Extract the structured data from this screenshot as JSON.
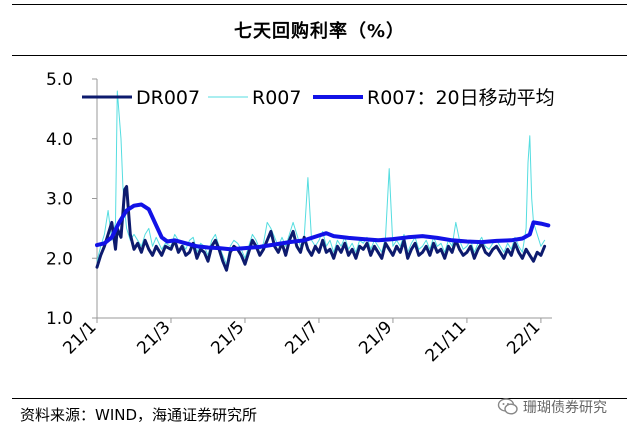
{
  "title": "七天回购利率（%）",
  "chart_data": {
    "type": "line",
    "title": "七天回购利率（%）",
    "xlabel": "",
    "ylabel": "",
    "ylim": [
      1.0,
      5.0
    ],
    "yticks": [
      "1.0",
      "2.0",
      "3.0",
      "4.0",
      "5.0"
    ],
    "ytick_values": [
      1.0,
      2.0,
      3.0,
      4.0,
      5.0
    ],
    "xlim": [
      0,
      12.3
    ],
    "xticks": [
      "21/1",
      "21/3",
      "21/5",
      "21/7",
      "21/9",
      "21/11",
      "22/1"
    ],
    "xtick_values": [
      0,
      2,
      4,
      6,
      8,
      10,
      12
    ],
    "legend": [
      "DR007",
      "R007",
      "R007：20日移动平均"
    ],
    "series": [
      {
        "name": "DR007",
        "color": "#0d1b6e",
        "x": [
          0.0,
          0.1,
          0.2,
          0.3,
          0.4,
          0.5,
          0.55,
          0.65,
          0.75,
          0.8,
          0.9,
          1.0,
          1.1,
          1.2,
          1.3,
          1.4,
          1.5,
          1.6,
          1.75,
          1.85,
          2.0,
          2.1,
          2.2,
          2.3,
          2.4,
          2.5,
          2.6,
          2.7,
          2.8,
          2.9,
          3.0,
          3.1,
          3.2,
          3.3,
          3.4,
          3.5,
          3.6,
          3.7,
          3.8,
          3.9,
          4.0,
          4.1,
          4.2,
          4.3,
          4.4,
          4.5,
          4.6,
          4.7,
          4.8,
          4.9,
          5.0,
          5.1,
          5.2,
          5.3,
          5.4,
          5.5,
          5.6,
          5.7,
          5.8,
          5.9,
          6.0,
          6.1,
          6.2,
          6.3,
          6.4,
          6.5,
          6.6,
          6.7,
          6.8,
          6.9,
          7.0,
          7.1,
          7.2,
          7.3,
          7.4,
          7.5,
          7.6,
          7.7,
          7.8,
          7.9,
          8.0,
          8.1,
          8.2,
          8.3,
          8.4,
          8.5,
          8.6,
          8.7,
          8.8,
          8.9,
          9.0,
          9.1,
          9.2,
          9.3,
          9.4,
          9.5,
          9.6,
          9.7,
          9.8,
          9.9,
          10.0,
          10.1,
          10.2,
          10.3,
          10.4,
          10.5,
          10.6,
          10.7,
          10.8,
          10.9,
          11.0,
          11.1,
          11.2,
          11.3,
          11.4,
          11.5,
          11.6,
          11.7,
          11.8,
          11.9,
          12.0,
          12.1
        ],
        "values": [
          1.85,
          2.05,
          2.2,
          2.4,
          2.6,
          2.15,
          2.5,
          2.35,
          3.15,
          3.2,
          2.4,
          2.15,
          2.25,
          2.1,
          2.3,
          2.15,
          2.05,
          2.2,
          2.05,
          2.2,
          2.15,
          2.3,
          2.1,
          2.2,
          2.05,
          2.1,
          2.25,
          2.0,
          2.15,
          2.1,
          1.95,
          2.2,
          2.3,
          2.15,
          1.95,
          1.8,
          2.1,
          2.2,
          2.15,
          2.05,
          1.9,
          2.1,
          2.3,
          2.2,
          2.05,
          2.15,
          2.3,
          2.45,
          2.2,
          2.1,
          2.25,
          2.05,
          2.3,
          2.45,
          2.2,
          2.1,
          2.35,
          2.15,
          2.05,
          2.2,
          2.1,
          2.3,
          2.1,
          2.15,
          2.0,
          2.2,
          2.1,
          2.25,
          2.05,
          2.15,
          2.0,
          2.2,
          2.15,
          2.25,
          2.05,
          2.2,
          2.1,
          2.0,
          2.25,
          2.15,
          2.05,
          2.2,
          2.1,
          2.3,
          2.0,
          2.15,
          2.25,
          2.05,
          2.1,
          2.2,
          2.05,
          2.25,
          2.1,
          2.15,
          2.0,
          2.2,
          2.1,
          2.3,
          2.15,
          2.05,
          2.1,
          2.2,
          2.0,
          2.15,
          2.25,
          2.1,
          2.05,
          2.15,
          2.2,
          2.1,
          2.0,
          2.15,
          2.05,
          2.25,
          2.1,
          2.0,
          2.15,
          2.05,
          1.95,
          2.1,
          2.05,
          2.2
        ]
      },
      {
        "name": "R007",
        "color": "#55dde0",
        "x": [
          0.0,
          0.1,
          0.2,
          0.3,
          0.4,
          0.5,
          0.55,
          0.65,
          0.7,
          0.75,
          0.8,
          0.9,
          1.0,
          1.1,
          1.2,
          1.3,
          1.4,
          1.5,
          1.6,
          1.75,
          1.85,
          2.0,
          2.1,
          2.2,
          2.3,
          2.4,
          2.5,
          2.6,
          2.7,
          2.8,
          2.9,
          3.0,
          3.1,
          3.2,
          3.3,
          3.4,
          3.5,
          3.6,
          3.7,
          3.8,
          3.9,
          4.0,
          4.1,
          4.2,
          4.3,
          4.4,
          4.5,
          4.6,
          4.7,
          4.8,
          4.9,
          5.0,
          5.1,
          5.2,
          5.3,
          5.4,
          5.5,
          5.6,
          5.7,
          5.8,
          5.9,
          6.0,
          6.1,
          6.2,
          6.3,
          6.4,
          6.5,
          6.6,
          6.7,
          6.8,
          6.9,
          7.0,
          7.1,
          7.2,
          7.3,
          7.4,
          7.5,
          7.6,
          7.7,
          7.8,
          7.9,
          8.0,
          8.1,
          8.2,
          8.3,
          8.4,
          8.5,
          8.6,
          8.7,
          8.8,
          8.9,
          9.0,
          9.1,
          9.2,
          9.3,
          9.4,
          9.5,
          9.6,
          9.7,
          9.8,
          9.9,
          10.0,
          10.1,
          10.2,
          10.3,
          10.4,
          10.5,
          10.6,
          10.7,
          10.8,
          10.9,
          11.0,
          11.1,
          11.2,
          11.3,
          11.4,
          11.5,
          11.6,
          11.65,
          11.7,
          11.75,
          11.8,
          11.9,
          12.0,
          12.1
        ],
        "values": [
          1.95,
          2.2,
          2.4,
          2.8,
          2.3,
          2.6,
          4.8,
          4.0,
          3.2,
          2.8,
          2.5,
          2.3,
          2.4,
          2.3,
          2.2,
          2.4,
          2.5,
          2.2,
          2.35,
          2.15,
          2.25,
          2.2,
          2.4,
          2.3,
          2.25,
          2.15,
          2.3,
          2.35,
          2.1,
          2.25,
          2.2,
          2.05,
          2.3,
          2.4,
          2.2,
          2.05,
          1.9,
          2.2,
          2.3,
          2.25,
          2.15,
          2.0,
          2.2,
          2.4,
          2.3,
          2.15,
          2.25,
          2.6,
          2.5,
          2.35,
          2.2,
          2.35,
          2.2,
          2.4,
          2.6,
          2.4,
          2.2,
          2.35,
          3.35,
          2.3,
          2.2,
          2.3,
          2.45,
          2.2,
          2.3,
          2.1,
          2.3,
          2.2,
          2.35,
          2.15,
          2.25,
          2.1,
          2.3,
          2.25,
          2.35,
          2.15,
          2.3,
          2.2,
          2.1,
          2.35,
          3.5,
          2.2,
          2.3,
          2.2,
          2.4,
          2.1,
          2.25,
          2.35,
          2.15,
          2.2,
          2.3,
          2.15,
          2.35,
          2.2,
          2.25,
          2.1,
          2.3,
          2.2,
          2.6,
          2.3,
          2.15,
          2.2,
          2.3,
          2.1,
          2.25,
          2.35,
          2.2,
          2.15,
          2.25,
          2.3,
          2.2,
          2.1,
          2.25,
          2.15,
          2.35,
          2.2,
          2.1,
          2.5,
          3.6,
          4.05,
          3.0,
          2.6,
          2.4,
          2.2,
          2.3
        ]
      },
      {
        "name": "R007：20日移动平均",
        "color": "#1212e6",
        "x": [
          0.0,
          0.2,
          0.4,
          0.6,
          0.8,
          1.0,
          1.2,
          1.4,
          1.6,
          1.75,
          1.9,
          2.1,
          2.4,
          2.7,
          3.0,
          3.3,
          3.6,
          4.0,
          4.4,
          4.8,
          5.2,
          5.6,
          6.0,
          6.2,
          6.4,
          6.8,
          7.2,
          7.6,
          8.0,
          8.4,
          8.8,
          9.2,
          9.6,
          10.0,
          10.4,
          10.8,
          11.2,
          11.5,
          11.7,
          11.8,
          12.0,
          12.2
        ],
        "values": [
          2.22,
          2.25,
          2.35,
          2.6,
          2.8,
          2.88,
          2.9,
          2.82,
          2.55,
          2.35,
          2.28,
          2.3,
          2.25,
          2.2,
          2.18,
          2.17,
          2.15,
          2.17,
          2.19,
          2.23,
          2.27,
          2.3,
          2.38,
          2.42,
          2.37,
          2.34,
          2.32,
          2.3,
          2.32,
          2.35,
          2.37,
          2.34,
          2.3,
          2.28,
          2.27,
          2.29,
          2.3,
          2.33,
          2.4,
          2.6,
          2.58,
          2.55
        ]
      }
    ]
  },
  "source": "资料来源：WIND，海通证券研究所",
  "watermark": "珊瑚债券研究"
}
